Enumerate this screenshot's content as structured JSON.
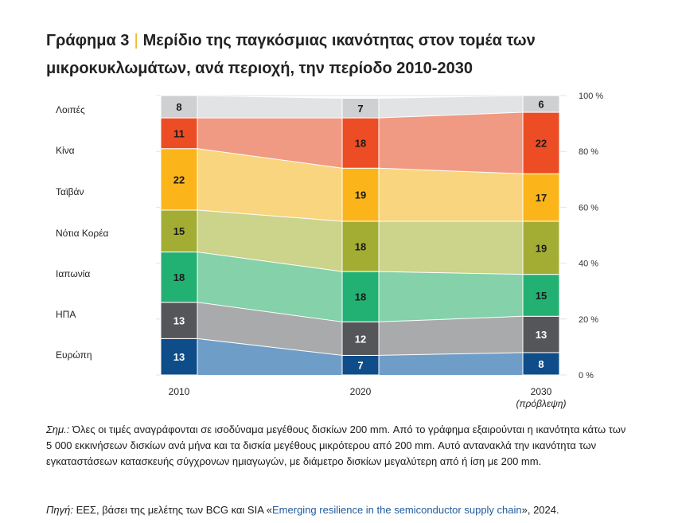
{
  "title": {
    "label": "Γράφημα 3",
    "separator": "|",
    "text": "Μερίδιο της παγκόσμιας ικανότητας στον τομέα των μικροκυκλωμάτων, ανά περιοχή, την περίοδο 2010-2030"
  },
  "chart_data": {
    "type": "bar",
    "stacked": true,
    "percent": true,
    "categories": [
      "2010",
      "2020",
      "2030"
    ],
    "category_sublabels": [
      "",
      "",
      "(πρόβλεψη)"
    ],
    "series": [
      {
        "name": "Ευρώπη",
        "values": [
          13,
          7,
          8
        ],
        "color": "#0e4d8a",
        "band_color": "#6e9dc7"
      },
      {
        "name": "ΗΠΑ",
        "values": [
          13,
          12,
          13
        ],
        "color": "#545659",
        "band_color": "#a8aaac"
      },
      {
        "name": "Ιαπωνία",
        "values": [
          18,
          18,
          15
        ],
        "color": "#23b073",
        "band_color": "#84d1aa"
      },
      {
        "name": "Νότια Κορέα",
        "values": [
          15,
          18,
          19
        ],
        "color": "#a3ad34",
        "band_color": "#ccd38b"
      },
      {
        "name": "Ταϊβάν",
        "values": [
          22,
          19,
          17
        ],
        "color": "#fbb51b",
        "band_color": "#f8d57e"
      },
      {
        "name": "Κίνα",
        "values": [
          11,
          18,
          22
        ],
        "color": "#ed4d24",
        "band_color": "#f09a83"
      },
      {
        "name": "Λοιπές",
        "values": [
          8,
          7,
          6
        ],
        "color": "#cfd0d2",
        "band_color": "#e2e3e4"
      }
    ],
    "yticks": [
      "0 %",
      "20 %",
      "40 %",
      "60 %",
      "80 %",
      "100 %"
    ],
    "ylim": [
      0,
      100
    ],
    "legend_position": "left"
  },
  "note": {
    "label": "Σημ.:",
    "text": "Όλες οι τιμές αναγράφονται σε ισοδύναμα μεγέθους δισκίων 200 mm. Από το γράφημα εξαιρούνται η ικανότητα κάτω των 5 000 εκκινήσεων δισκίων ανά μήνα και τα δισκία μεγέθους μικρότερου από 200 mm. Αυτό αντανακλά την ικανότητα των εγκαταστάσεων κατασκευής σύγχρονων ημιαγωγών, με διάμετρο δισκίων μεγαλύτερη από ή ίση με 200 mm."
  },
  "source": {
    "label": "Πηγή:",
    "prefix": "ΕΕΣ, βάσει της μελέτης των BCG και SIA «",
    "link": "Emerging resilience in the semiconductor supply chain",
    "suffix": "», 2024."
  }
}
